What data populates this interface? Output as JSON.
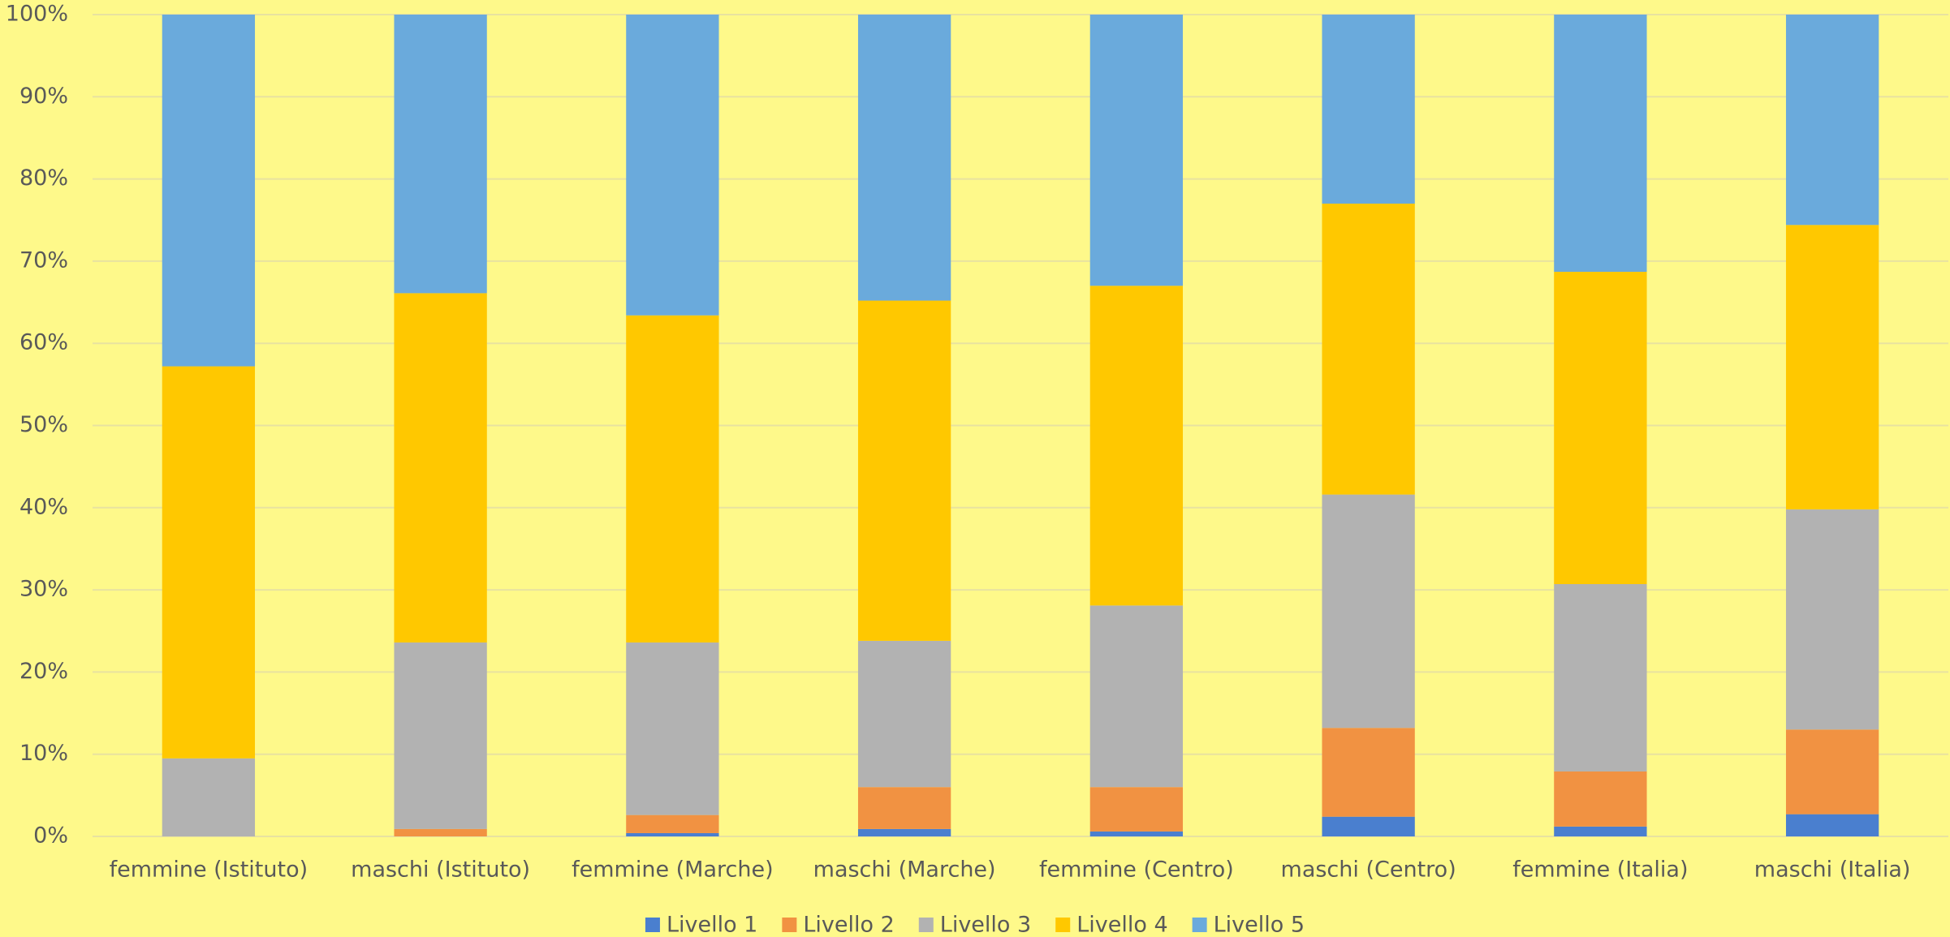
{
  "chart_data": {
    "type": "stacked_bar",
    "categories": [
      "femmine (Istituto)",
      "maschi (Istituto)",
      "femmine (Marche)",
      "maschi (Marche)",
      "femmine (Centro)",
      "maschi (Centro)",
      "femmine (Italia)",
      "maschi (Italia)"
    ],
    "series": [
      {
        "name": "Livello 1",
        "color": "#4a7fcf",
        "values": [
          0,
          0,
          0.4,
          0.9,
          0.6,
          2.4,
          1.2,
          2.7
        ]
      },
      {
        "name": "Livello 2",
        "color": "#f19242",
        "values": [
          0,
          0.9,
          2.2,
          5.1,
          5.4,
          10.8,
          6.7,
          10.3
        ]
      },
      {
        "name": "Livello 3",
        "color": "#b2b2b2",
        "values": [
          9.5,
          22.7,
          21.0,
          17.8,
          22.1,
          28.4,
          22.8,
          26.8
        ]
      },
      {
        "name": "Livello 4",
        "color": "#ffc800",
        "values": [
          47.7,
          42.5,
          39.8,
          41.4,
          38.9,
          35.4,
          38.0,
          34.6
        ]
      },
      {
        "name": "Livello 5",
        "color": "#6aaadc",
        "values": [
          42.8,
          33.9,
          36.6,
          34.8,
          33.0,
          23.0,
          31.3,
          25.6
        ]
      }
    ],
    "ylim": [
      0,
      100
    ],
    "yticks": [
      {
        "value": 0,
        "label": "0%"
      },
      {
        "value": 10,
        "label": "10%"
      },
      {
        "value": 20,
        "label": "20%"
      },
      {
        "value": 30,
        "label": "30%"
      },
      {
        "value": 40,
        "label": "40%"
      },
      {
        "value": 50,
        "label": "50%"
      },
      {
        "value": 60,
        "label": "60%"
      },
      {
        "value": 70,
        "label": "70%"
      },
      {
        "value": 80,
        "label": "80%"
      },
      {
        "value": 90,
        "label": "90%"
      },
      {
        "value": 100,
        "label": "100%"
      }
    ],
    "grid": true,
    "legend": "bottom"
  }
}
